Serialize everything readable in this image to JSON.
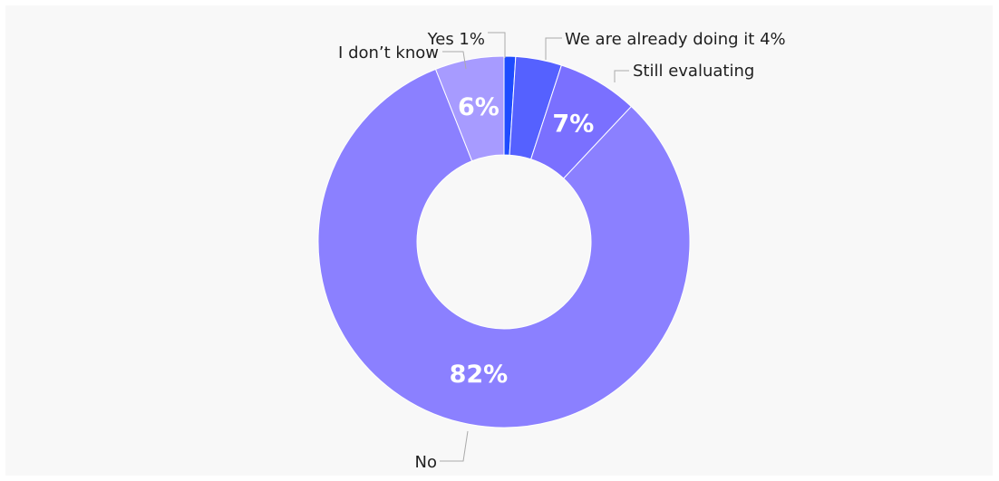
{
  "chart_data": {
    "type": "pie",
    "variant": "donut",
    "title": "",
    "slices": [
      {
        "label": "Yes",
        "value": 1,
        "color": "#1f4cff",
        "outside_text": "Yes 1%",
        "inside_text": ""
      },
      {
        "label": "We are already doing it",
        "value": 4,
        "color": "#5561ff",
        "outside_text": "We are already doing it 4%",
        "inside_text": ""
      },
      {
        "label": "Still evaluating",
        "value": 7,
        "color": "#7a70ff",
        "outside_text": "Still evaluating",
        "inside_text": "7%"
      },
      {
        "label": "No",
        "value": 82,
        "color": "#8b80ff",
        "outside_text": "No",
        "inside_text": "82%"
      },
      {
        "label": "I don’t know",
        "value": 6,
        "color": "#a79bff",
        "outside_text": "I don’t know",
        "inside_text": "6%"
      }
    ],
    "legend": "none"
  }
}
